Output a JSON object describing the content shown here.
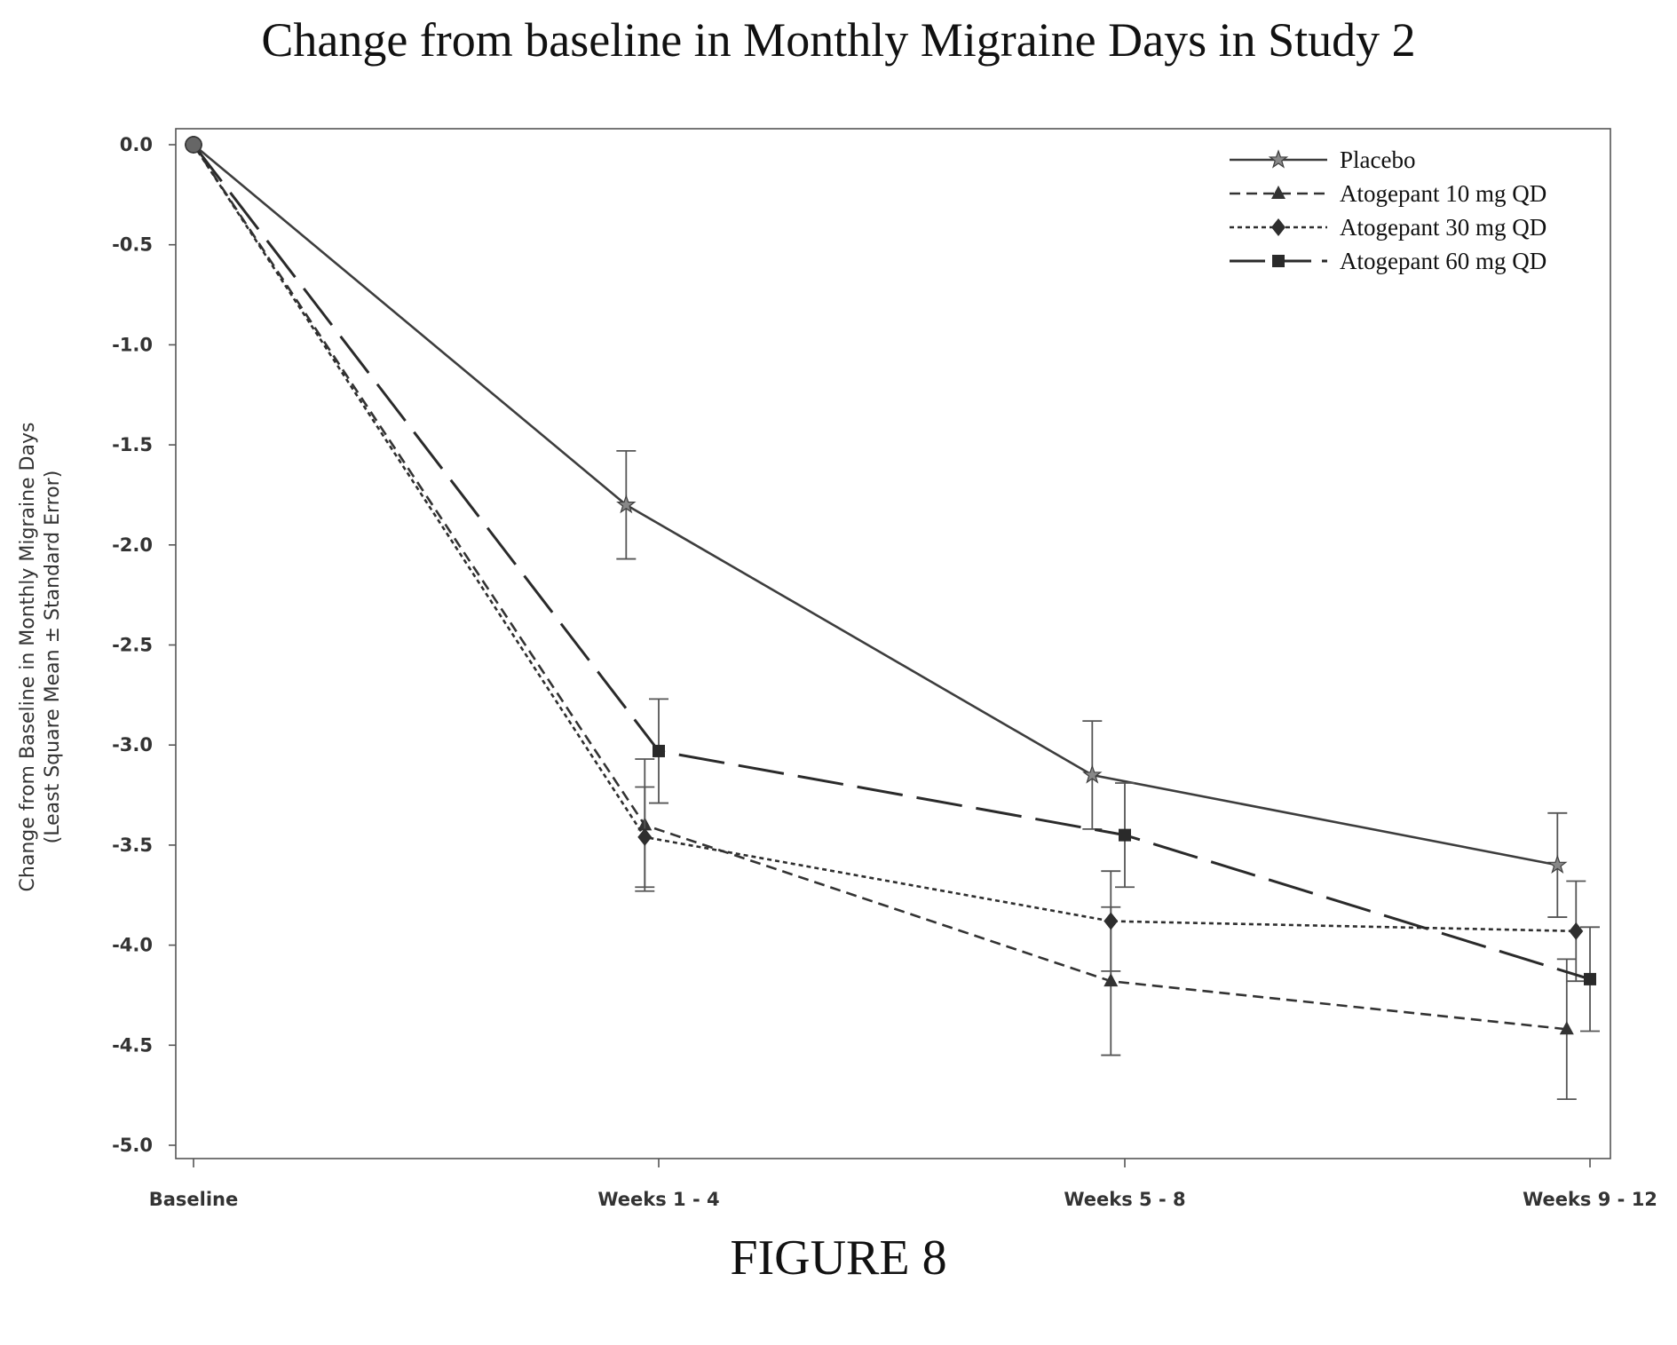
{
  "title": "Change from baseline in Monthly Migraine Days in Study 2",
  "figure_label": "FIGURE 8",
  "chart_data": {
    "type": "line",
    "title": "Change from baseline in Monthly Migraine Days in Study 2",
    "categories": [
      "Baseline",
      "Weeks 1 - 4",
      "Weeks 5 - 8",
      "Weeks 9 - 12"
    ],
    "ylabel_line1": "Change from Baseline in Monthly Migraine Days",
    "ylabel_line2": "(Least Square Mean ± Standard Error)",
    "ylim": [
      -5.0,
      0.0
    ],
    "yticks": [
      "0.0",
      "-0.5",
      "-1.0",
      "-1.5",
      "-2.0",
      "-2.5",
      "-3.0",
      "-3.5",
      "-4.0",
      "-4.5",
      "-5.0"
    ],
    "ytick_values": [
      0.0,
      -0.5,
      -1.0,
      -1.5,
      -2.0,
      -2.5,
      -3.0,
      -3.5,
      -4.0,
      -4.5,
      -5.0
    ],
    "legend_position": "top-right",
    "grid": false,
    "series": [
      {
        "name": "Placebo",
        "marker": "star",
        "dash": "solid",
        "x_offsets": [
          0,
          -0.07,
          -0.07,
          -0.07
        ],
        "values": [
          0.0,
          -1.8,
          -3.15,
          -3.6
        ],
        "errors": [
          0.0,
          0.27,
          0.27,
          0.26
        ]
      },
      {
        "name": "Atogepant 10 mg QD",
        "marker": "triangle",
        "dash": "short-dash",
        "x_offsets": [
          0,
          -0.03,
          -0.03,
          -0.05
        ],
        "values": [
          0.0,
          -3.4,
          -4.18,
          -4.42
        ],
        "errors": [
          0.0,
          0.33,
          0.37,
          0.35
        ]
      },
      {
        "name": "Atogepant 30 mg QD",
        "marker": "diamond",
        "dash": "dot-dash",
        "x_offsets": [
          0,
          -0.03,
          -0.03,
          -0.03
        ],
        "values": [
          0.0,
          -3.46,
          -3.88,
          -3.93
        ],
        "errors": [
          0.0,
          0.25,
          0.25,
          0.25
        ]
      },
      {
        "name": "Atogepant 60 mg QD",
        "marker": "square",
        "dash": "long-dash",
        "x_offsets": [
          0,
          0.0,
          0.0,
          0.0
        ],
        "values": [
          0.0,
          -3.03,
          -3.45,
          -4.17
        ],
        "errors": [
          0.0,
          0.26,
          0.26,
          0.26
        ]
      }
    ]
  }
}
